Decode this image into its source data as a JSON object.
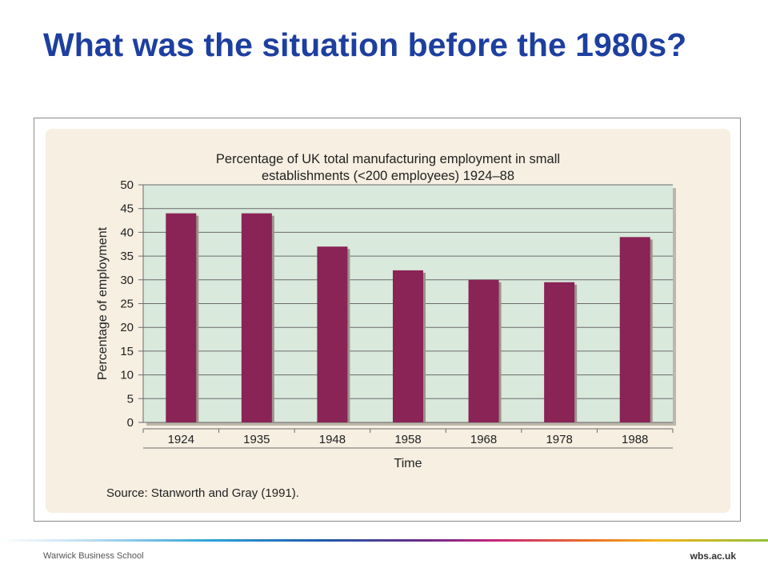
{
  "slide": {
    "title": "What was the situation before the 1980s?"
  },
  "footer": {
    "left": "Warwick Business School",
    "right": "wbs.ac.uk"
  },
  "colors": {
    "title": "#1d3f9f",
    "bar": "#8a2356",
    "plot_bg": "#d9e9dc",
    "panel_bg": "#f6efe2"
  },
  "chart_data": {
    "type": "bar",
    "title_lines": [
      "Percentage of UK total manufacturing employment in small",
      "establishments (<200 employees) 1924–88"
    ],
    "categories": [
      "1924",
      "1935",
      "1948",
      "1958",
      "1968",
      "1978",
      "1988"
    ],
    "values": [
      44,
      44,
      37,
      32,
      30,
      29.5,
      39
    ],
    "xlabel": "Time",
    "ylabel": "Percentage of employment",
    "ylim": [
      0,
      50
    ],
    "yticks": [
      0,
      5,
      10,
      15,
      20,
      25,
      30,
      35,
      40,
      45,
      50
    ],
    "grid": true,
    "source": "Source: Stanworth and Gray (1991)."
  }
}
